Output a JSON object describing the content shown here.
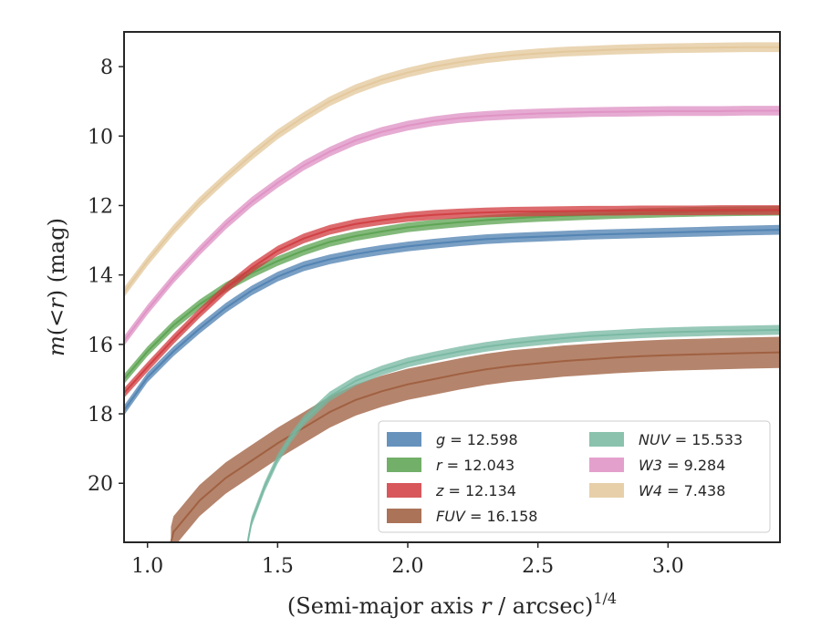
{
  "chart_data": {
    "type": "line",
    "xlabel": "(Semi-major axis r / arcsec)",
    "xlabel_parts": {
      "pre": "(Semi-major axis ",
      "var": "r",
      "post": " / arcsec)",
      "sup": "1/4"
    },
    "ylabel_parts": {
      "m": "m",
      "open": "(",
      "lt": "<",
      "r": "r",
      "close": ")",
      "unit": " (mag)"
    },
    "xlim": [
      0.91,
      3.43
    ],
    "ylim": [
      21.7,
      7.0
    ],
    "y_inverted": true,
    "grid": false,
    "xticks": [
      1.0,
      1.5,
      2.0,
      2.5,
      3.0
    ],
    "xtick_labels": [
      "1.0",
      "1.5",
      "2.0",
      "2.5",
      "3.0"
    ],
    "yticks": [
      8,
      10,
      12,
      14,
      16,
      18,
      20
    ],
    "ytick_labels": [
      "8",
      "10",
      "12",
      "14",
      "16",
      "18",
      "20"
    ],
    "legend": {
      "placement": "lower right",
      "columns": 2
    },
    "series": [
      {
        "name": "g",
        "label_var": "g",
        "label_val": " = 12.598",
        "color": "#4c7fb0",
        "band": 0.14,
        "x": [
          0.91,
          1.0,
          1.1,
          1.2,
          1.3,
          1.4,
          1.5,
          1.6,
          1.7,
          1.8,
          1.9,
          2.0,
          2.1,
          2.2,
          2.3,
          2.4,
          2.5,
          2.6,
          2.7,
          2.8,
          2.9,
          3.0,
          3.1,
          3.2,
          3.3,
          3.43
        ],
        "y": [
          17.9,
          16.95,
          16.2,
          15.55,
          14.95,
          14.45,
          14.05,
          13.75,
          13.55,
          13.4,
          13.28,
          13.18,
          13.1,
          13.03,
          12.97,
          12.93,
          12.9,
          12.87,
          12.84,
          12.82,
          12.8,
          12.78,
          12.76,
          12.74,
          12.72,
          12.7
        ]
      },
      {
        "name": "r",
        "label_var": "r",
        "label_val": " = 12.043",
        "color": "#59a14f",
        "band": 0.14,
        "x": [
          0.91,
          1.0,
          1.1,
          1.2,
          1.3,
          1.4,
          1.5,
          1.6,
          1.7,
          1.8,
          1.9,
          2.0,
          2.1,
          2.2,
          2.3,
          2.4,
          2.5,
          2.6,
          2.7,
          2.8,
          2.9,
          3.0,
          3.1,
          3.2,
          3.3,
          3.43
        ],
        "y": [
          17.0,
          16.2,
          15.45,
          14.85,
          14.35,
          13.95,
          13.6,
          13.3,
          13.05,
          12.88,
          12.75,
          12.63,
          12.55,
          12.48,
          12.42,
          12.37,
          12.33,
          12.3,
          12.27,
          12.24,
          12.22,
          12.2,
          12.18,
          12.17,
          12.16,
          12.15
        ]
      },
      {
        "name": "z",
        "label_var": "z",
        "label_val": " = 12.134",
        "color": "#d03a3e",
        "band": 0.14,
        "x": [
          0.91,
          1.0,
          1.1,
          1.2,
          1.3,
          1.4,
          1.5,
          1.6,
          1.7,
          1.8,
          1.9,
          2.0,
          2.1,
          2.2,
          2.3,
          2.4,
          2.5,
          2.6,
          2.7,
          2.8,
          2.9,
          3.0,
          3.1,
          3.2,
          3.3,
          3.43
        ],
        "y": [
          17.4,
          16.65,
          15.85,
          15.1,
          14.4,
          13.8,
          13.3,
          12.95,
          12.7,
          12.53,
          12.42,
          12.33,
          12.27,
          12.23,
          12.2,
          12.18,
          12.17,
          12.16,
          12.15,
          12.15,
          12.14,
          12.14,
          12.14,
          12.13,
          12.13,
          12.13
        ]
      },
      {
        "name": "FUV",
        "label_var": "FUV",
        "label_val": " = 16.158",
        "color": "#9c5b3b",
        "band": 0.45,
        "x": [
          1.09,
          1.1,
          1.2,
          1.3,
          1.4,
          1.5,
          1.6,
          1.7,
          1.8,
          1.9,
          2.0,
          2.1,
          2.2,
          2.3,
          2.4,
          2.5,
          2.6,
          2.7,
          2.8,
          2.9,
          3.0,
          3.1,
          3.2,
          3.3,
          3.43
        ],
        "y": [
          21.7,
          21.4,
          20.5,
          19.85,
          19.35,
          18.85,
          18.4,
          17.95,
          17.6,
          17.35,
          17.15,
          17.0,
          16.85,
          16.72,
          16.62,
          16.55,
          16.48,
          16.43,
          16.38,
          16.34,
          16.31,
          16.29,
          16.27,
          16.25,
          16.23
        ]
      },
      {
        "name": "NUV",
        "label_var": "NUV",
        "label_val": " = 15.533",
        "color": "#76b7a0",
        "band": 0.14,
        "x": [
          1.385,
          1.4,
          1.45,
          1.5,
          1.55,
          1.6,
          1.7,
          1.8,
          1.9,
          2.0,
          2.1,
          2.2,
          2.3,
          2.4,
          2.5,
          2.6,
          2.7,
          2.8,
          2.9,
          3.0,
          3.1,
          3.2,
          3.3,
          3.43
        ],
        "y": [
          21.7,
          21.1,
          20.1,
          19.3,
          18.7,
          18.2,
          17.5,
          17.05,
          16.75,
          16.52,
          16.35,
          16.2,
          16.07,
          15.97,
          15.89,
          15.82,
          15.76,
          15.72,
          15.68,
          15.65,
          15.63,
          15.61,
          15.6,
          15.58
        ]
      },
      {
        "name": "W3",
        "label_var": "W3",
        "label_val": " = 9.284",
        "color": "#de8fc3",
        "band": 0.14,
        "x": [
          0.91,
          1.0,
          1.1,
          1.2,
          1.3,
          1.4,
          1.5,
          1.6,
          1.7,
          1.8,
          1.9,
          2.0,
          2.1,
          2.2,
          2.3,
          2.4,
          2.5,
          2.6,
          2.7,
          2.8,
          2.9,
          3.0,
          3.1,
          3.2,
          3.3,
          3.43
        ],
        "y": [
          15.9,
          15.0,
          14.1,
          13.3,
          12.55,
          11.9,
          11.35,
          10.85,
          10.45,
          10.12,
          9.88,
          9.7,
          9.57,
          9.48,
          9.42,
          9.38,
          9.35,
          9.33,
          9.31,
          9.3,
          9.29,
          9.28,
          9.28,
          9.28,
          9.27,
          9.27
        ]
      },
      {
        "name": "W4",
        "label_var": "W4",
        "label_val": " = 7.438",
        "color": "#e3c79a",
        "band": 0.14,
        "x": [
          0.91,
          1.0,
          1.1,
          1.2,
          1.3,
          1.4,
          1.5,
          1.6,
          1.7,
          1.8,
          1.9,
          2.0,
          2.1,
          2.2,
          2.3,
          2.4,
          2.5,
          2.6,
          2.7,
          2.8,
          2.9,
          3.0,
          3.1,
          3.2,
          3.3,
          3.43
        ],
        "y": [
          14.5,
          13.6,
          12.7,
          11.9,
          11.2,
          10.55,
          9.95,
          9.45,
          9.0,
          8.65,
          8.38,
          8.17,
          8.0,
          7.87,
          7.76,
          7.68,
          7.62,
          7.57,
          7.54,
          7.51,
          7.49,
          7.47,
          7.46,
          7.45,
          7.44,
          7.44
        ]
      }
    ]
  }
}
